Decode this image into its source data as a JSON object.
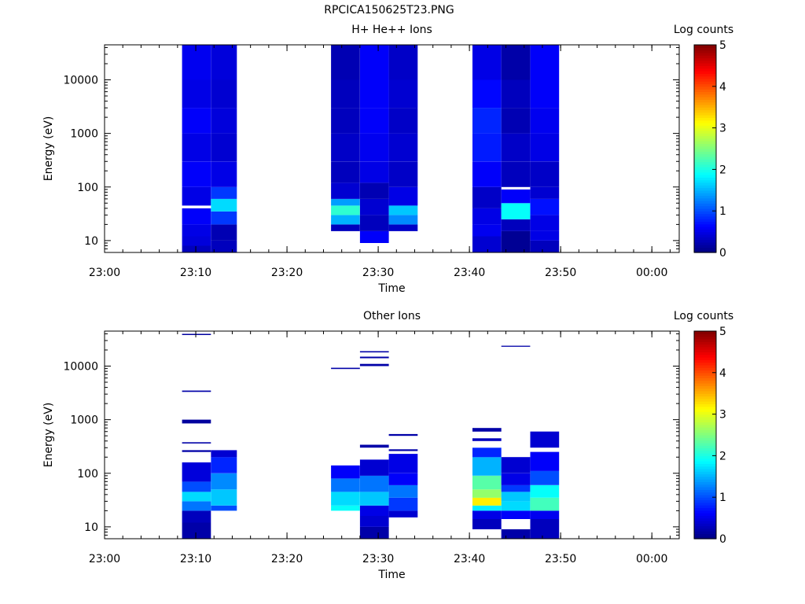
{
  "figure_title": "RPCICA150625T23.PNG",
  "colors": {
    "axis": "#000000",
    "background": "#ffffff"
  },
  "chart_data": [
    {
      "type": "heatmap",
      "title": "H+ He++ Ions",
      "xlabel": "Time",
      "ylabel": "Energy (eV)",
      "colorbar_label": "Log counts",
      "x_ticks": [
        "23:00",
        "23:10",
        "23:20",
        "23:30",
        "23:40",
        "23:50",
        "00:00"
      ],
      "y_ticks": [
        "10",
        "100",
        "1000",
        "10000"
      ],
      "colorbar_ticks": [
        "0",
        "1",
        "2",
        "3",
        "4",
        "5"
      ],
      "xlim": [
        "23:00",
        "00:03"
      ],
      "ylim": [
        6,
        45000
      ],
      "yscale": "log",
      "colorbar_range": [
        0,
        5
      ],
      "colormap": "jet",
      "columns": [
        {
          "t0": "23:08:30",
          "t1": "23:11:40",
          "cells": [
            [
              6,
              8,
              0.3
            ],
            [
              8,
              12,
              0.45
            ],
            [
              12,
              20,
              0.5
            ],
            [
              20,
              40,
              0.6
            ],
            [
              40,
              45,
              "gap"
            ],
            [
              45,
              100,
              0.5
            ],
            [
              100,
              300,
              0.6
            ],
            [
              300,
              1000,
              0.5
            ],
            [
              1000,
              3000,
              0.6
            ],
            [
              3000,
              10000,
              0.5
            ],
            [
              10000,
              45000,
              0.55
            ]
          ]
        },
        {
          "t0": "23:11:40",
          "t1": "23:14:30",
          "cells": [
            [
              6,
              10,
              0.3
            ],
            [
              10,
              20,
              0.25
            ],
            [
              20,
              35,
              0.9
            ],
            [
              35,
              60,
              1.7
            ],
            [
              60,
              100,
              0.9
            ],
            [
              100,
              300,
              0.5
            ],
            [
              300,
              1000,
              0.4
            ],
            [
              1000,
              3000,
              0.45
            ],
            [
              3000,
              10000,
              0.4
            ],
            [
              10000,
              45000,
              0.45
            ]
          ]
        },
        {
          "t0": "23:24:50",
          "t1": "23:28:00",
          "cells": [
            [
              15,
              20,
              0.3
            ],
            [
              20,
              30,
              1.5
            ],
            [
              30,
              45,
              2.1
            ],
            [
              45,
              60,
              1.4
            ],
            [
              60,
              120,
              0.4
            ],
            [
              120,
              300,
              0.3
            ],
            [
              300,
              1000,
              0.35
            ],
            [
              1000,
              3000,
              0.3
            ],
            [
              3000,
              10000,
              0.3
            ],
            [
              10000,
              45000,
              0.25
            ]
          ]
        },
        {
          "t0": "23:28:00",
          "t1": "23:31:10",
          "cells": [
            [
              9,
              15,
              0.6
            ],
            [
              15,
              30,
              0.3
            ],
            [
              30,
              60,
              0.4
            ],
            [
              60,
              120,
              0.25
            ],
            [
              120,
              300,
              0.5
            ],
            [
              300,
              1000,
              0.55
            ],
            [
              1000,
              3000,
              0.6
            ],
            [
              3000,
              10000,
              0.6
            ],
            [
              10000,
              45000,
              0.6
            ]
          ]
        },
        {
          "t0": "23:31:10",
          "t1": "23:34:20",
          "cells": [
            [
              15,
              20,
              0.35
            ],
            [
              20,
              30,
              1.3
            ],
            [
              30,
              45,
              1.6
            ],
            [
              45,
              100,
              0.5
            ],
            [
              100,
              300,
              0.35
            ],
            [
              300,
              1000,
              0.4
            ],
            [
              1000,
              3000,
              0.35
            ],
            [
              3000,
              10000,
              0.4
            ],
            [
              10000,
              45000,
              0.35
            ]
          ]
        },
        {
          "t0": "23:40:20",
          "t1": "23:43:30",
          "cells": [
            [
              6,
              12,
              0.4
            ],
            [
              12,
              20,
              0.55
            ],
            [
              20,
              40,
              0.5
            ],
            [
              40,
              100,
              0.35
            ],
            [
              100,
              300,
              0.6
            ],
            [
              300,
              1000,
              0.75
            ],
            [
              1000,
              3000,
              0.8
            ],
            [
              3000,
              10000,
              0.65
            ],
            [
              10000,
              45000,
              0.5
            ]
          ]
        },
        {
          "t0": "23:43:30",
          "t1": "23:46:40",
          "cells": [
            [
              6,
              15,
              0.1
            ],
            [
              15,
              25,
              0.3
            ],
            [
              25,
              50,
              1.9
            ],
            [
              50,
              90,
              0.6
            ],
            [
              90,
              100,
              "gap"
            ],
            [
              100,
              300,
              0.3
            ],
            [
              300,
              1000,
              0.35
            ],
            [
              1000,
              3000,
              0.25
            ],
            [
              3000,
              10000,
              0.3
            ],
            [
              10000,
              45000,
              0.2
            ]
          ]
        },
        {
          "t0": "23:46:40",
          "t1": "23:49:50",
          "cells": [
            [
              6,
              10,
              0.3
            ],
            [
              10,
              15,
              0.5
            ],
            [
              15,
              30,
              0.5
            ],
            [
              30,
              60,
              0.7
            ],
            [
              60,
              100,
              0.4
            ],
            [
              100,
              300,
              0.35
            ],
            [
              300,
              1000,
              0.5
            ],
            [
              1000,
              3000,
              0.55
            ],
            [
              3000,
              10000,
              0.6
            ],
            [
              10000,
              45000,
              0.6
            ]
          ]
        }
      ]
    },
    {
      "type": "heatmap",
      "title": "Other Ions",
      "xlabel": "Time",
      "ylabel": "Energy (eV)",
      "colorbar_label": "Log counts",
      "x_ticks": [
        "23:00",
        "23:10",
        "23:20",
        "23:30",
        "23:40",
        "23:50",
        "00:00"
      ],
      "y_ticks": [
        "10",
        "100",
        "1000",
        "10000"
      ],
      "colorbar_ticks": [
        "0",
        "1",
        "2",
        "3",
        "4",
        "5"
      ],
      "xlim": [
        "23:00",
        "00:03"
      ],
      "ylim": [
        6,
        45000
      ],
      "yscale": "log",
      "colorbar_range": [
        0,
        5
      ],
      "colormap": "jet",
      "columns": [
        {
          "t0": "23:08:30",
          "t1": "23:11:40",
          "cells": [
            [
              6,
              12,
              0.2
            ],
            [
              12,
              20,
              0.3
            ],
            [
              20,
              30,
              1.2
            ],
            [
              30,
              45,
              1.7
            ],
            [
              45,
              70,
              1.0
            ],
            [
              70,
              160,
              0.45
            ],
            [
              250,
              270,
              0.2
            ],
            [
              360,
              380,
              0.2
            ],
            [
              850,
              1000,
              0.15
            ],
            [
              3300,
              3500,
              0.2
            ],
            [
              38000,
              40000,
              0.15
            ]
          ]
        },
        {
          "t0": "23:11:40",
          "t1": "23:14:30",
          "cells": [
            [
              20,
              25,
              1.0
            ],
            [
              25,
              50,
              1.6
            ],
            [
              50,
              100,
              1.3
            ],
            [
              100,
              200,
              0.8
            ],
            [
              200,
              270,
              0.4
            ]
          ]
        },
        {
          "t0": "23:24:50",
          "t1": "23:28:00",
          "cells": [
            [
              20,
              25,
              1.9
            ],
            [
              25,
              45,
              1.7
            ],
            [
              45,
              80,
              1.2
            ],
            [
              80,
              140,
              0.6
            ],
            [
              8800,
              9300,
              0.2
            ]
          ]
        },
        {
          "t0": "23:28:00",
          "t1": "23:31:10",
          "cells": [
            [
              6,
              10,
              0.2
            ],
            [
              10,
              16,
              0.4
            ],
            [
              16,
              25,
              0.5
            ],
            [
              25,
              45,
              1.6
            ],
            [
              45,
              90,
              1.2
            ],
            [
              90,
              180,
              0.4
            ],
            [
              300,
              340,
              0.2
            ],
            [
              10000,
              11000,
              0.2
            ],
            [
              14000,
              15000,
              0.2
            ],
            [
              18000,
              19000,
              0.2
            ]
          ]
        },
        {
          "t0": "23:31:10",
          "t1": "23:34:20",
          "cells": [
            [
              15,
              20,
              0.4
            ],
            [
              20,
              35,
              0.9
            ],
            [
              35,
              60,
              1.2
            ],
            [
              60,
              100,
              0.6
            ],
            [
              100,
              230,
              0.5
            ],
            [
              260,
              280,
              0.2
            ],
            [
              500,
              540,
              0.2
            ]
          ]
        },
        {
          "t0": "23:40:20",
          "t1": "23:43:30",
          "cells": [
            [
              9,
              14,
              0.3
            ],
            [
              14,
              20,
              0.5
            ],
            [
              20,
              25,
              1.8
            ],
            [
              25,
              35,
              3.2
            ],
            [
              35,
              50,
              2.6
            ],
            [
              50,
              90,
              2.3
            ],
            [
              90,
              200,
              1.5
            ],
            [
              200,
              300,
              0.8
            ],
            [
              400,
              450,
              0.3
            ],
            [
              600,
              700,
              0.2
            ]
          ]
        },
        {
          "t0": "23:43:30",
          "t1": "23:46:40",
          "cells": [
            [
              6,
              9,
              0.2
            ],
            [
              14,
              20,
              0.6
            ],
            [
              20,
              30,
              1.7
            ],
            [
              30,
              45,
              1.6
            ],
            [
              45,
              60,
              0.9
            ],
            [
              60,
              100,
              0.5
            ],
            [
              100,
              200,
              0.4
            ],
            [
              23000,
              24000,
              0.2
            ]
          ]
        },
        {
          "t0": "23:46:40",
          "t1": "23:49:50",
          "cells": [
            [
              6,
              14,
              0.3
            ],
            [
              14,
              20,
              0.55
            ],
            [
              20,
              35,
              2.2
            ],
            [
              35,
              60,
              1.9
            ],
            [
              60,
              110,
              1.0
            ],
            [
              110,
              250,
              0.6
            ],
            [
              300,
              600,
              0.4
            ]
          ]
        }
      ]
    }
  ]
}
